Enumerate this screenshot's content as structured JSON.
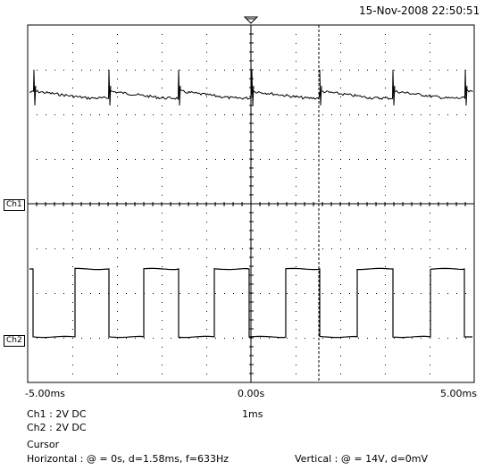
{
  "timestamp": "15-Nov-2008 22:50:51",
  "channels": {
    "ch1_marker": "Ch1",
    "ch2_marker": "Ch2",
    "ch1_settings": "Ch1 : 2V  DC",
    "ch2_settings": "Ch2 : 2V  DC"
  },
  "time_axis": {
    "left_label": "-5.00ms",
    "center_label": "0.00s",
    "right_label": "5.00ms",
    "timebase": "1ms"
  },
  "cursor": {
    "heading": "Cursor",
    "horizontal": "Horizontal : @ = 0s, d=1.58ms, f=633Hz",
    "vertical": "Vertical : @ = 14V, d=0mV"
  },
  "colors": {
    "trace": "#000000",
    "grid": "#000000",
    "background": "#ffffff"
  }
}
